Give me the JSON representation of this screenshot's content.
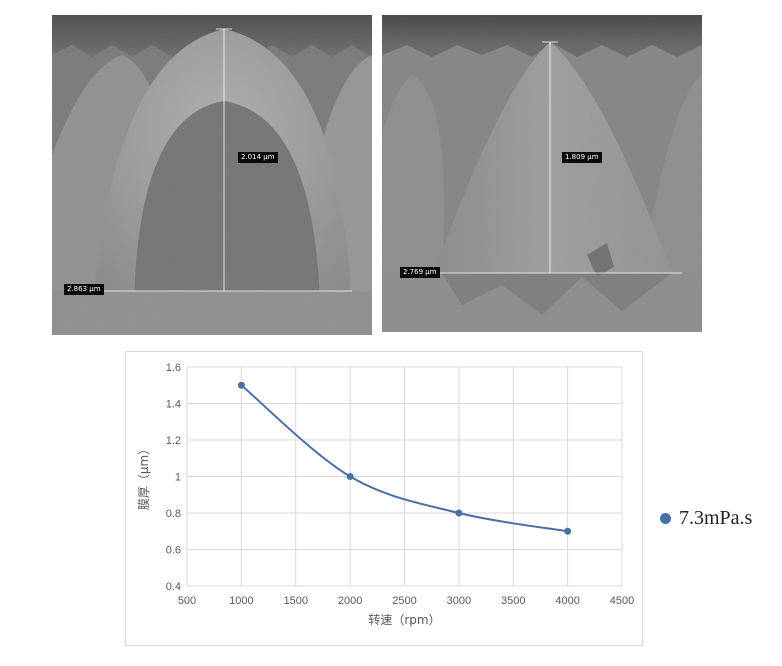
{
  "images": {
    "left": {
      "label_height": "2.014 µm",
      "label_width": "2.863 µm"
    },
    "right": {
      "label_height": "1.809 µm",
      "label_width": "2.769 µm"
    }
  },
  "chart_data": {
    "type": "scatter",
    "smooth_line": true,
    "xlabel": "转速（rpm）",
    "ylabel": "膜厚（μm）",
    "xlim": [
      500,
      4500
    ],
    "ylim": [
      0.4,
      1.6
    ],
    "x_ticks": [
      500,
      1000,
      1500,
      2000,
      2500,
      3000,
      3500,
      4000,
      4500
    ],
    "y_ticks": [
      0.4,
      0.6,
      0.8,
      1,
      1.2,
      1.4,
      1.6
    ],
    "x_tick_labels": [
      "500",
      "1000",
      "1500",
      "2000",
      "2500",
      "3000",
      "3500",
      "4000",
      "4500"
    ],
    "y_tick_labels": [
      "0.4",
      "0.6",
      "0.8",
      "1",
      "1.2",
      "1.4",
      "1.6"
    ],
    "grid": true,
    "legend_position": "right",
    "series": [
      {
        "name": "7.3mPa.s",
        "color": "#4a6fa5",
        "x": [
          1000,
          2000,
          3000,
          4000
        ],
        "y": [
          1.5,
          1.0,
          0.8,
          0.7
        ]
      }
    ]
  }
}
